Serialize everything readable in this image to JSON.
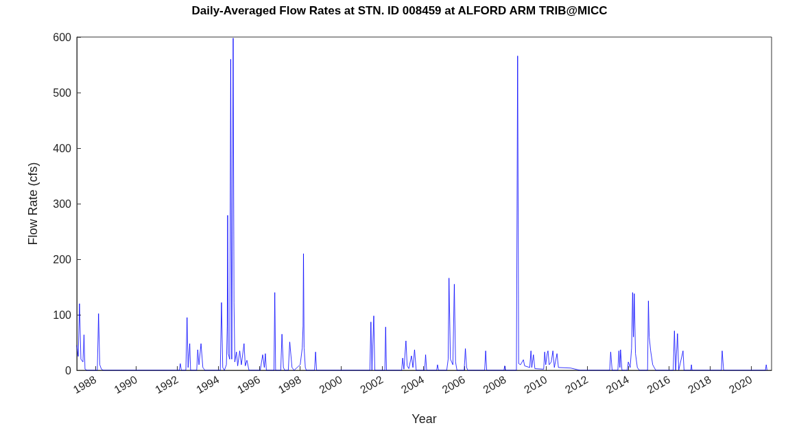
{
  "chart_data": {
    "type": "line",
    "title": "Daily-Averaged Flow Rates at STN. ID 008459 at ALFORD ARM TRIB@MICC",
    "xlabel": "Year",
    "ylabel": "Flow Rate (cfs)",
    "xlim": [
      1987.1,
      2021
    ],
    "xticks": [
      1988,
      1990,
      1992,
      1994,
      1996,
      1998,
      2000,
      2002,
      2004,
      2006,
      2008,
      2010,
      2012,
      2014,
      2016,
      2018,
      2020
    ],
    "ylim": [
      0,
      600
    ],
    "yticks": [
      0,
      100,
      200,
      300,
      400,
      500,
      600
    ],
    "marker": "none",
    "line_style": "solid",
    "series": [
      {
        "color": "#0000ff",
        "x": [
          1987.1,
          1987.17,
          1987.23,
          1987.3,
          1987.4,
          1987.45,
          1987.5,
          1987.6,
          1988.1,
          1988.16,
          1988.22,
          1988.3,
          1988.4,
          1992.1,
          1992.15,
          1992.2,
          1992.42,
          1992.48,
          1992.53,
          1992.61,
          1992.65,
          1992.95,
          1993.0,
          1993.06,
          1993.16,
          1993.25,
          1993.35,
          1994.1,
          1994.16,
          1994.22,
          1994.3,
          1994.4,
          1994.44,
          1994.46,
          1994.49,
          1994.56,
          1994.61,
          1994.66,
          1994.73,
          1994.77,
          1994.81,
          1994.89,
          1994.95,
          1995.05,
          1995.13,
          1995.26,
          1995.32,
          1995.4,
          1995.5,
          1996.05,
          1996.17,
          1996.25,
          1996.3,
          1996.35,
          1996.72,
          1996.76,
          1996.8,
          1997.05,
          1997.11,
          1997.18,
          1997.25,
          1997.42,
          1997.49,
          1997.6,
          1997.7,
          1998.0,
          1998.1,
          1998.14,
          1998.16,
          1998.19,
          1998.25,
          1998.3,
          1998.7,
          1998.75,
          1998.8,
          2001.4,
          2001.45,
          2001.5,
          2001.59,
          2001.64,
          2002.13,
          2002.17,
          2002.21,
          2002.95,
          2003.0,
          2003.06,
          2003.16,
          2003.22,
          2003.3,
          2003.43,
          2003.5,
          2003.58,
          2003.66,
          2004.07,
          2004.12,
          2004.17,
          2004.66,
          2004.7,
          2004.75,
          2005.15,
          2005.22,
          2005.26,
          2005.33,
          2005.45,
          2005.52,
          2005.58,
          2005.65,
          2006.0,
          2006.06,
          2006.12,
          2006.18,
          2007.0,
          2007.05,
          2007.1,
          2007.94,
          2007.98,
          2008.02,
          2008.55,
          2008.61,
          2008.66,
          2008.75,
          2008.89,
          2008.95,
          2009.2,
          2009.26,
          2009.3,
          2009.38,
          2009.45,
          2009.88,
          2009.93,
          2009.98,
          2010.05,
          2010.09,
          2010.15,
          2010.25,
          2010.33,
          2010.4,
          2010.53,
          2010.6,
          2011.2,
          2011.66,
          2013.1,
          2013.15,
          2013.22,
          2013.5,
          2013.55,
          2013.6,
          2013.63,
          2013.7,
          2013.96,
          2014.01,
          2014.1,
          2014.17,
          2014.22,
          2014.26,
          2014.3,
          2014.36,
          2014.45,
          2014.55,
          2014.95,
          2014.99,
          2015.03,
          2015.1,
          2015.2,
          2015.35,
          2016.2,
          2016.26,
          2016.32,
          2016.41,
          2016.47,
          2016.68,
          2016.73,
          2017.06,
          2017.09,
          2017.12,
          2018.55,
          2018.59,
          2018.66,
          2020.7,
          2020.74,
          2020.78
        ],
        "values": [
          45,
          25,
          120,
          20,
          15,
          64,
          2,
          0,
          0,
          102,
          10,
          2,
          0,
          0,
          12,
          0,
          0,
          95,
          5,
          48,
          0,
          0,
          37,
          10,
          48,
          5,
          0,
          0,
          122,
          5,
          0,
          10,
          80,
          279,
          30,
          20,
          560,
          20,
          598,
          122,
          15,
          33,
          8,
          35,
          10,
          48,
          8,
          18,
          0,
          0,
          28,
          5,
          30,
          0,
          0,
          140,
          0,
          0,
          65,
          5,
          0,
          0,
          51,
          5,
          0,
          10,
          40,
          80,
          210,
          40,
          5,
          0,
          0,
          33,
          0,
          0,
          87,
          0,
          98,
          0,
          0,
          78,
          0,
          0,
          22,
          2,
          53,
          8,
          3,
          26,
          5,
          37,
          0,
          0,
          28,
          0,
          0,
          10,
          0,
          0,
          20,
          166,
          20,
          10,
          155,
          15,
          0,
          0,
          39,
          5,
          0,
          0,
          35,
          0,
          0,
          8,
          0,
          0,
          566,
          12,
          10,
          19,
          8,
          5,
          35,
          5,
          28,
          3,
          2,
          33,
          10,
          30,
          35,
          10,
          15,
          35,
          5,
          30,
          5,
          4,
          0,
          0,
          33,
          0,
          0,
          35,
          5,
          37,
          0,
          0,
          15,
          5,
          40,
          140,
          60,
          138,
          30,
          5,
          0,
          0,
          125,
          60,
          35,
          10,
          0,
          0,
          71,
          0,
          66,
          0,
          35,
          0,
          0,
          10,
          0,
          0,
          35,
          0,
          0,
          10,
          0
        ]
      }
    ]
  }
}
